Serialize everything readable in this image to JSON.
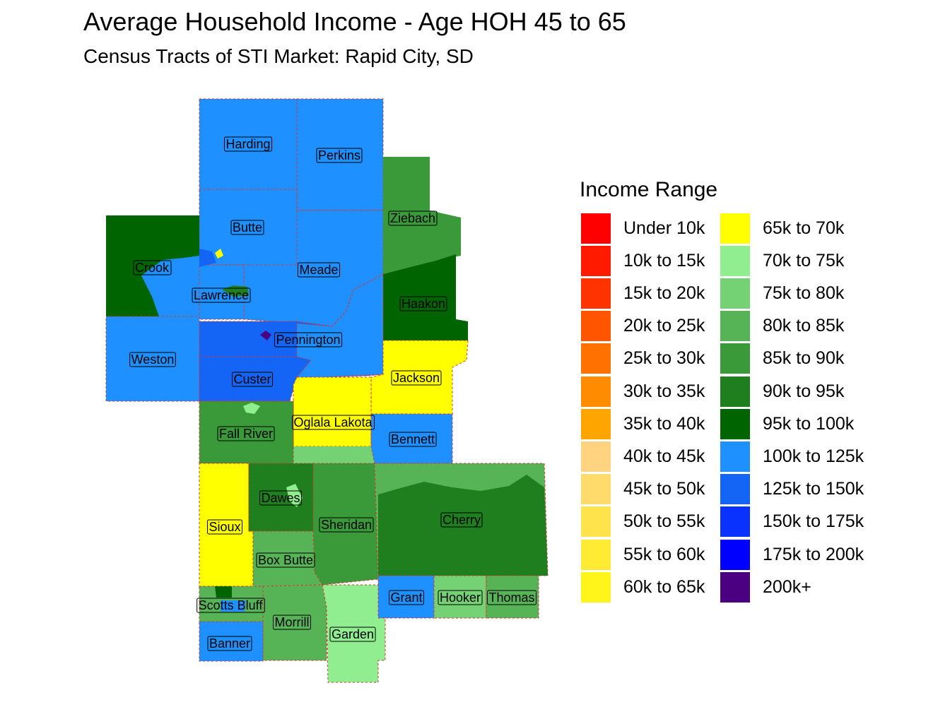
{
  "title": "Average Household Income - Age HOH 45 to 65",
  "subtitle": "Census Tracts of STI Market: Rapid City, SD",
  "legend": {
    "title": "Income Range",
    "items": [
      {
        "label": "Under 10k",
        "color": "#ff0000"
      },
      {
        "label": "10k to 15k",
        "color": "#ff1a00"
      },
      {
        "label": "15k to 20k",
        "color": "#ff3300"
      },
      {
        "label": "20k to 25k",
        "color": "#ff5500"
      },
      {
        "label": "25k to 30k",
        "color": "#ff7200"
      },
      {
        "label": "30k to 35k",
        "color": "#ff8c00"
      },
      {
        "label": "35k to 40k",
        "color": "#ffa500"
      },
      {
        "label": "40k to 45k",
        "color": "#ffd37f"
      },
      {
        "label": "45k to 50k",
        "color": "#ffdb6b"
      },
      {
        "label": "50k to 55k",
        "color": "#ffe34d"
      },
      {
        "label": "55k to 60k",
        "color": "#ffeb33"
      },
      {
        "label": "60k to 65k",
        "color": "#fff51a"
      },
      {
        "label": "65k to 70k",
        "color": "#ffff00"
      },
      {
        "label": "70k to 75k",
        "color": "#90ee90"
      },
      {
        "label": "75k to 80k",
        "color": "#74d274"
      },
      {
        "label": "80k to 85k",
        "color": "#56b356"
      },
      {
        "label": "85k to 90k",
        "color": "#3a9a3a"
      },
      {
        "label": "90k to 95k",
        "color": "#1f7f1f"
      },
      {
        "label": "95k to 100k",
        "color": "#006400"
      },
      {
        "label": "100k to 125k",
        "color": "#1e90ff"
      },
      {
        "label": "125k to 150k",
        "color": "#1464f5"
      },
      {
        "label": "150k to 175k",
        "color": "#0a32ff"
      },
      {
        "label": "175k to 200k",
        "color": "#0000ff"
      },
      {
        "label": "200k+",
        "color": "#4b0082"
      }
    ]
  },
  "counties": [
    {
      "name": "Harding",
      "bracket": "100k to 125k"
    },
    {
      "name": "Perkins",
      "bracket": "100k to 125k"
    },
    {
      "name": "Butte",
      "bracket": "100k to 125k"
    },
    {
      "name": "Ziebach",
      "bracket": "85k to 90k"
    },
    {
      "name": "Crook",
      "bracket": "95k to 100k"
    },
    {
      "name": "Meade",
      "bracket": "100k to 125k"
    },
    {
      "name": "Lawrence",
      "bracket": "100k to 125k"
    },
    {
      "name": "Haakon",
      "bracket": "95k to 100k"
    },
    {
      "name": "Pennington",
      "bracket": "125k to 150k"
    },
    {
      "name": "Weston",
      "bracket": "100k to 125k"
    },
    {
      "name": "Custer",
      "bracket": "125k to 150k"
    },
    {
      "name": "Jackson",
      "bracket": "65k to 70k"
    },
    {
      "name": "Oglala Lakota",
      "bracket": "65k to 70k"
    },
    {
      "name": "Fall River",
      "bracket": "85k to 90k"
    },
    {
      "name": "Bennett",
      "bracket": "100k to 125k"
    },
    {
      "name": "Dawes",
      "bracket": "90k to 95k"
    },
    {
      "name": "Sheridan",
      "bracket": "85k to 90k"
    },
    {
      "name": "Cherry",
      "bracket": "90k to 95k"
    },
    {
      "name": "Sioux",
      "bracket": "65k to 70k"
    },
    {
      "name": "Box Butte",
      "bracket": "80k to 85k"
    },
    {
      "name": "Grant",
      "bracket": "100k to 125k"
    },
    {
      "name": "Hooker",
      "bracket": "75k to 80k"
    },
    {
      "name": "Thomas",
      "bracket": "80k to 85k"
    },
    {
      "name": "Scotts Bluff",
      "bracket": "80k to 85k"
    },
    {
      "name": "Morrill",
      "bracket": "80k to 85k"
    },
    {
      "name": "Garden",
      "bracket": "70k to 75k"
    },
    {
      "name": "Banner",
      "bracket": "100k to 125k"
    }
  ]
}
